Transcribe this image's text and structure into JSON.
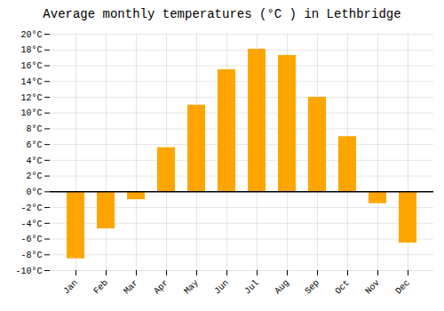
{
  "chart_data": {
    "type": "bar",
    "title": "Average monthly temperatures (°C ) in Lethbridge",
    "categories": [
      "Jan",
      "Feb",
      "Mar",
      "Apr",
      "May",
      "Jun",
      "Jul",
      "Aug",
      "Sep",
      "Oct",
      "Nov",
      "Dec"
    ],
    "values": [
      -8.5,
      -4.7,
      -1.0,
      5.6,
      11.0,
      15.5,
      18.1,
      17.3,
      12.0,
      7.0,
      -1.5,
      -6.5
    ],
    "color": "#FFA500",
    "ylim": [
      -10,
      20
    ],
    "yticks": [
      {
        "value": -10,
        "label": "-10°C"
      },
      {
        "value": -8,
        "label": "-8°C"
      },
      {
        "value": -6,
        "label": "-6°C"
      },
      {
        "value": -4,
        "label": "-4°C"
      },
      {
        "value": -2,
        "label": "-2°C"
      },
      {
        "value": 0,
        "label": "0°C"
      },
      {
        "value": 2,
        "label": "2°C"
      },
      {
        "value": 4,
        "label": "4°C"
      },
      {
        "value": 6,
        "label": "6°C"
      },
      {
        "value": 8,
        "label": "8°C"
      },
      {
        "value": 10,
        "label": "10°C"
      },
      {
        "value": 12,
        "label": "12°C"
      },
      {
        "value": 14,
        "label": "14°C"
      },
      {
        "value": 16,
        "label": "16°C"
      },
      {
        "value": 18,
        "label": "18°C"
      },
      {
        "value": 20,
        "label": "20°C"
      }
    ],
    "grid": true
  }
}
